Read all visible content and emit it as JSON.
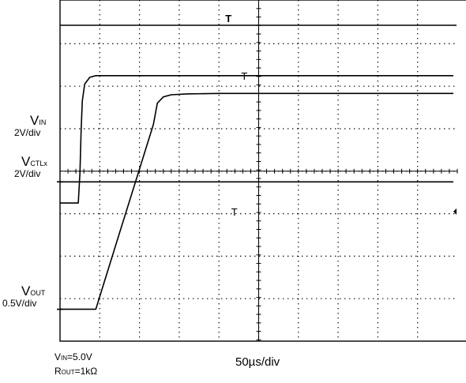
{
  "chart_data": {
    "type": "line",
    "grid": true,
    "x_divisions": 10,
    "y_divisions": 8,
    "timebase": "50µs/div",
    "channels": [
      {
        "name_main": "V",
        "name_sub": "IN",
        "scale": "2V/div",
        "ref_div": 3.75,
        "points": [
          [
            -0.2,
            -0.5
          ],
          [
            0.46,
            -0.5
          ],
          [
            0.5,
            0.2
          ],
          [
            0.53,
            1.2
          ],
          [
            0.56,
            1.9
          ],
          [
            0.62,
            2.3
          ],
          [
            0.75,
            2.46
          ],
          [
            0.9,
            2.5
          ],
          [
            1.5,
            2.5
          ],
          [
            3,
            2.5
          ],
          [
            5,
            2.5
          ],
          [
            7,
            2.5
          ],
          [
            9.9,
            2.5
          ]
        ]
      },
      {
        "name_main": "V",
        "name_sub": "CTLx",
        "scale": "2V/div",
        "ref_div": 3.75,
        "points": [
          [
            -0.2,
            0
          ],
          [
            9.9,
            0
          ]
        ]
      },
      {
        "name_main": "V",
        "name_sub": "OUT",
        "scale": "0.5V/div",
        "ref_div": 0.75,
        "points": [
          [
            -0.2,
            0
          ],
          [
            0.9,
            0
          ],
          [
            1,
            0.3
          ],
          [
            1.5,
            1.8
          ],
          [
            2,
            3.3
          ],
          [
            2.35,
            4.35
          ],
          [
            2.45,
            4.85
          ],
          [
            2.6,
            5.0
          ],
          [
            2.8,
            5.05
          ],
          [
            3.2,
            5.07
          ],
          [
            4,
            5.08
          ],
          [
            6,
            5.08
          ],
          [
            9.9,
            5.08
          ]
        ]
      }
    ],
    "markers": [
      "T",
      "T",
      "T"
    ],
    "conditions": [
      {
        "main": "V",
        "sub": "IN",
        "value": "=5.0V"
      },
      {
        "main": "R",
        "sub": "OUT",
        "value": "=1kΩ"
      }
    ],
    "colors": {
      "trace": "#000000",
      "grid": "#000000",
      "background": "#ffffff"
    }
  }
}
